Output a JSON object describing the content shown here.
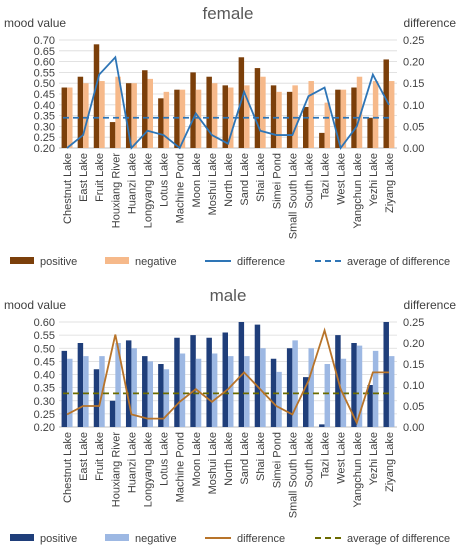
{
  "categories": [
    "Chestnut Lake",
    "East Lake",
    "Fruit Lake",
    "Houxiang River",
    "Huanzi Lake",
    "Longyang Lake",
    "Lotus Lake",
    "Machine Pond",
    "Moon Lake",
    "Moshui Lake",
    "North Lake",
    "Sand Lake",
    "Shai Lake",
    "Simei Pond",
    "Small South Lake",
    "South Lake",
    "Tazi Lake",
    "West Lake",
    "Yangchun Lake",
    "Yezhi Lake",
    "Ziyang Lake"
  ],
  "chart_data": [
    {
      "type": "bar",
      "title": "female",
      "ylabel": "mood value",
      "y2label": "difference",
      "ylim": [
        0.2,
        0.7
      ],
      "y2lim": [
        0.0,
        0.25
      ],
      "yticks": [
        "0.20",
        "0.25",
        "0.30",
        "0.35",
        "0.40",
        "0.45",
        "0.50",
        "0.55",
        "0.60",
        "0.65",
        "0.70"
      ],
      "y2ticks": [
        "0.00",
        "0.05",
        "0.10",
        "0.15",
        "0.20",
        "0.25"
      ],
      "grid": true,
      "legend_position": "bottom",
      "series": [
        {
          "name": "positive",
          "kind": "bar",
          "axis": "left",
          "color": "#7b3f0a",
          "values": [
            0.48,
            0.53,
            0.68,
            0.32,
            0.5,
            0.56,
            0.43,
            0.47,
            0.55,
            0.53,
            0.49,
            0.62,
            0.57,
            0.49,
            0.46,
            0.39,
            0.27,
            0.47,
            0.48,
            0.34,
            0.61
          ]
        },
        {
          "name": "negative",
          "kind": "bar",
          "axis": "left",
          "color": "#f6b98a",
          "values": [
            0.48,
            0.5,
            0.51,
            0.53,
            0.5,
            0.52,
            0.46,
            0.47,
            0.47,
            0.5,
            0.48,
            0.49,
            0.53,
            0.46,
            0.49,
            0.51,
            0.41,
            0.47,
            0.53,
            0.51,
            0.51
          ]
        },
        {
          "name": "difference",
          "kind": "line",
          "axis": "right",
          "color": "#2e75b6",
          "values": [
            0.0,
            0.03,
            0.17,
            0.21,
            0.0,
            0.04,
            0.03,
            0.0,
            0.08,
            0.03,
            0.01,
            0.13,
            0.04,
            0.03,
            0.03,
            0.12,
            0.14,
            0.0,
            0.05,
            0.17,
            0.1
          ]
        },
        {
          "name": "average of difference",
          "kind": "avgline",
          "axis": "right",
          "color": "#2e75b6",
          "value": 0.07
        }
      ]
    },
    {
      "type": "bar",
      "title": "male",
      "ylabel": "mood value",
      "y2label": "difference",
      "ylim": [
        0.2,
        0.6
      ],
      "y2lim": [
        0.0,
        0.25
      ],
      "yticks": [
        "0.20",
        "0.25",
        "0.30",
        "0.35",
        "0.40",
        "0.45",
        "0.50",
        "0.55",
        "0.60"
      ],
      "y2ticks": [
        "0.00",
        "0.05",
        "0.10",
        "0.15",
        "0.20",
        "0.25"
      ],
      "grid": true,
      "legend_position": "bottom",
      "series": [
        {
          "name": "positive",
          "kind": "bar",
          "axis": "left",
          "color": "#1f3e7a",
          "values": [
            0.49,
            0.52,
            0.42,
            0.3,
            0.53,
            0.47,
            0.44,
            0.54,
            0.55,
            0.54,
            0.56,
            0.6,
            0.59,
            0.46,
            0.5,
            0.39,
            0.21,
            0.55,
            0.52,
            0.36,
            0.6
          ]
        },
        {
          "name": "negative",
          "kind": "bar",
          "axis": "left",
          "color": "#9db8e3",
          "values": [
            0.46,
            0.47,
            0.47,
            0.52,
            0.5,
            0.45,
            0.42,
            0.48,
            0.46,
            0.48,
            0.47,
            0.47,
            0.5,
            0.41,
            0.53,
            0.5,
            0.44,
            0.46,
            0.51,
            0.49,
            0.47
          ]
        },
        {
          "name": "difference",
          "kind": "line",
          "axis": "right",
          "color": "#b8742a",
          "values": [
            0.03,
            0.05,
            0.05,
            0.22,
            0.03,
            0.02,
            0.02,
            0.06,
            0.09,
            0.06,
            0.09,
            0.13,
            0.09,
            0.05,
            0.03,
            0.11,
            0.23,
            0.09,
            0.01,
            0.13,
            0.13
          ]
        },
        {
          "name": "average of difference",
          "kind": "avgline",
          "axis": "right",
          "color": "#6b6b00",
          "value": 0.08
        }
      ]
    }
  ]
}
